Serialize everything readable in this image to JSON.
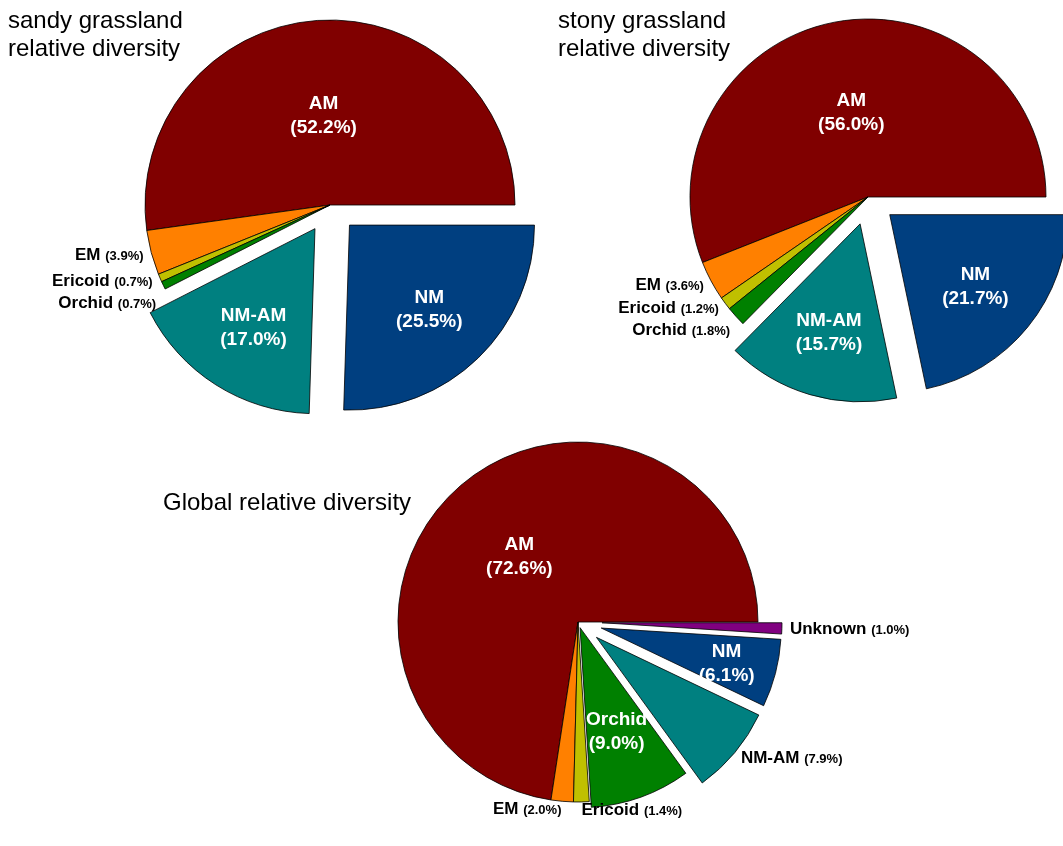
{
  "chart_data": [
    {
      "type": "pie",
      "title": "sandy grassland relative diversity",
      "categories": [
        "AM",
        "EM",
        "Ericoid",
        "Orchid",
        "NM-AM",
        "NM"
      ],
      "values": [
        52.2,
        3.9,
        0.7,
        0.7,
        17.0,
        25.5
      ],
      "value_labels": [
        "(52.2%)",
        "(3.9%)",
        "(0.7%)",
        "(0.7%)",
        "(17.0%)",
        "(25.5%)"
      ],
      "colors": [
        "#800000",
        "#ff8000",
        "#c0c000",
        "#008000",
        "#008080",
        "#003f80"
      ]
    },
    {
      "type": "pie",
      "title": "stony grassland relative diversity",
      "categories": [
        "AM",
        "EM",
        "Ericoid",
        "Orchid",
        "NM-AM",
        "NM"
      ],
      "values": [
        56.0,
        3.6,
        1.2,
        1.8,
        15.7,
        21.7
      ],
      "value_labels": [
        "(56.0%)",
        "(3.6%)",
        "(1.2%)",
        "(1.8%)",
        "(15.7%)",
        "(21.7%)"
      ],
      "colors": [
        "#800000",
        "#ff8000",
        "#c0c000",
        "#008000",
        "#008080",
        "#003f80"
      ]
    },
    {
      "type": "pie",
      "title": "Global relative diversity",
      "categories": [
        "AM",
        "EM",
        "Ericoid",
        "Orchid",
        "NM-AM",
        "NM",
        "Unknown"
      ],
      "values": [
        72.6,
        2.0,
        1.4,
        9.0,
        7.9,
        6.1,
        1.0
      ],
      "value_labels": [
        "(72.6%)",
        "(2.0%)",
        "(1.4%)",
        "(9.0%)",
        "(7.9%)",
        "(6.1%)",
        "(1.0%)"
      ],
      "colors": [
        "#800000",
        "#ff8000",
        "#c0c000",
        "#008000",
        "#008080",
        "#003f80",
        "#800080"
      ]
    }
  ]
}
